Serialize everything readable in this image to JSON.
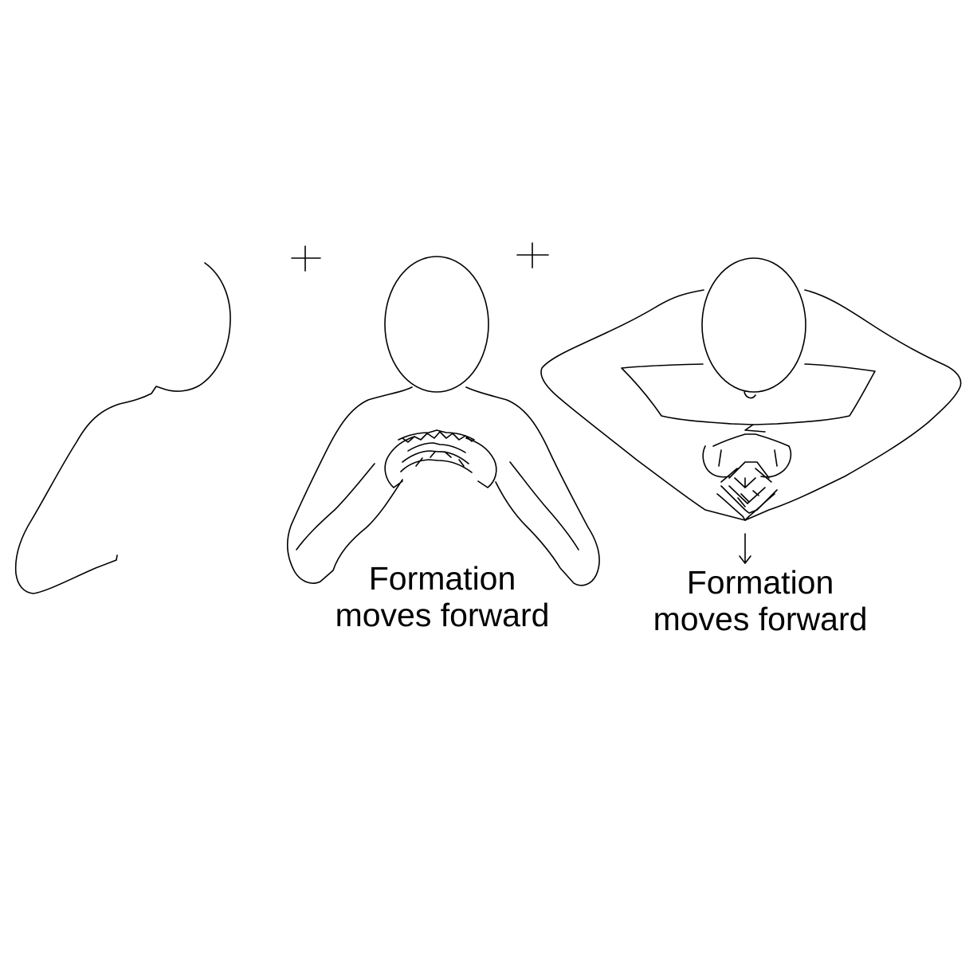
{
  "captions": [
    {
      "line1": "Formation",
      "line2": "moves forward"
    },
    {
      "line1": "Formation",
      "line2": "moves forward"
    }
  ],
  "markers": {
    "plus_left": "+",
    "plus_right": "+",
    "arrow": "down-arrow-icon"
  },
  "colors": {
    "stroke": "#000000",
    "background": "#ffffff"
  }
}
